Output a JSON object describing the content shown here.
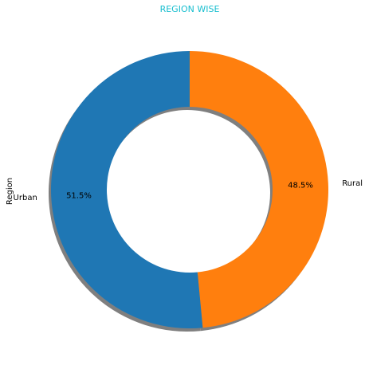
{
  "chart_data": {
    "type": "pie",
    "title": "REGION WISE",
    "title_color": "#17becf",
    "ylabel": "Region",
    "donut": true,
    "shadow": true,
    "start_angle_deg": 90,
    "direction": "clockwise",
    "slices": [
      {
        "label": "Rural",
        "value": 48.5,
        "pct_label": "48.5%",
        "color": "#ff7f0e"
      },
      {
        "label": "Urban",
        "value": 51.5,
        "pct_label": "51.5%",
        "color": "#1f77b4"
      }
    ]
  }
}
